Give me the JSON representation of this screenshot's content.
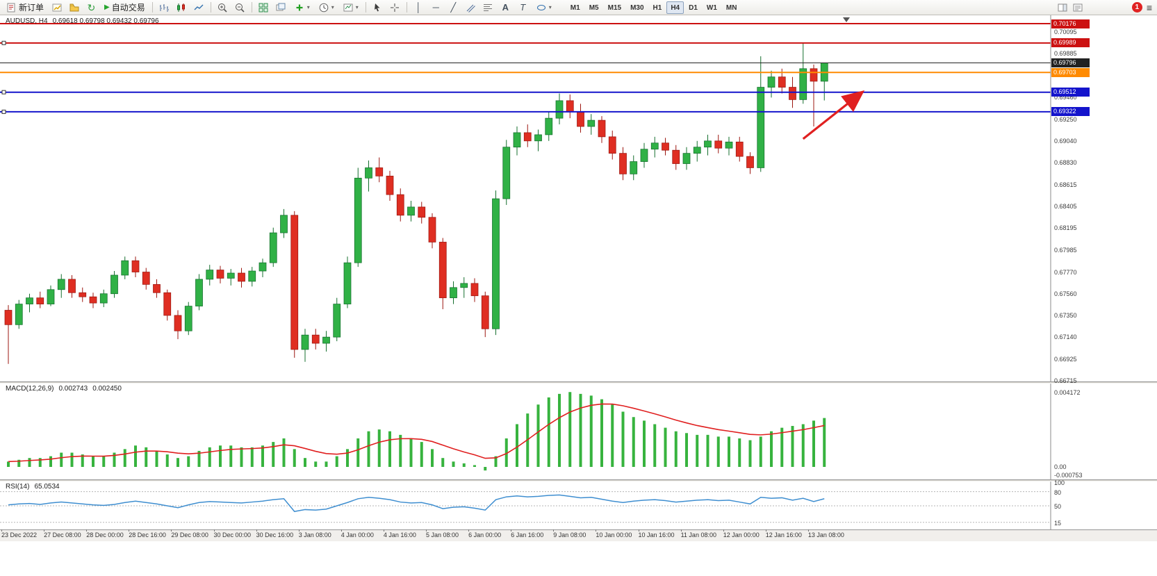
{
  "toolbar": {
    "new_order_label": "新订单",
    "autotrading_label": "自动交易",
    "timeframes": [
      "M1",
      "M5",
      "M15",
      "M30",
      "H1",
      "H4",
      "D1",
      "W1",
      "MN"
    ],
    "active_timeframe": "H4",
    "notification_count": "1",
    "glyphs": {
      "caret": "▾",
      "refresh": "↻",
      "play": "▶",
      "vline": "│",
      "hline": "─",
      "trendline": "╱",
      "text_tool": "A",
      "label_tool": "T",
      "menu": "≡"
    }
  },
  "chart": {
    "symbol_period": "AUDUSD, H4",
    "ohlc": "0.69618 0.69798 0.69432 0.69796"
  },
  "chart_data": {
    "type": "candlestick",
    "symbol": "AUDUSD",
    "period": "H4",
    "colors": {
      "up": "#30b146",
      "up_dark": "#156f2e",
      "down": "#df2e22",
      "down_dark": "#9c1710",
      "current_price_line": "#222222",
      "resistance_line": "#cc1111",
      "support_line": "#1414cc",
      "pivot_line": "#ff8a00",
      "arrow": "#e02020"
    },
    "candles": [
      [
        0.674,
        0.6745,
        0.6688,
        0.6726
      ],
      [
        0.6726,
        0.675,
        0.6722,
        0.6746
      ],
      [
        0.6746,
        0.6756,
        0.6738,
        0.6752
      ],
      [
        0.6752,
        0.6758,
        0.6742,
        0.6746
      ],
      [
        0.6746,
        0.6764,
        0.6744,
        0.676
      ],
      [
        0.676,
        0.6775,
        0.6752,
        0.677
      ],
      [
        0.677,
        0.6774,
        0.6752,
        0.6757
      ],
      [
        0.6757,
        0.6762,
        0.6748,
        0.6753
      ],
      [
        0.6753,
        0.6757,
        0.6742,
        0.6747
      ],
      [
        0.6747,
        0.676,
        0.6743,
        0.6756
      ],
      [
        0.6756,
        0.6778,
        0.6752,
        0.6774
      ],
      [
        0.6774,
        0.6792,
        0.677,
        0.6788
      ],
      [
        0.6788,
        0.6792,
        0.6772,
        0.6777
      ],
      [
        0.6777,
        0.6781,
        0.676,
        0.6765
      ],
      [
        0.6765,
        0.677,
        0.6752,
        0.6757
      ],
      [
        0.6757,
        0.676,
        0.673,
        0.6735
      ],
      [
        0.6735,
        0.674,
        0.6712,
        0.672
      ],
      [
        0.672,
        0.6748,
        0.6716,
        0.6744
      ],
      [
        0.6744,
        0.6775,
        0.674,
        0.677
      ],
      [
        0.677,
        0.6784,
        0.6764,
        0.6779
      ],
      [
        0.6779,
        0.6783,
        0.6766,
        0.6771
      ],
      [
        0.6771,
        0.678,
        0.6764,
        0.6776
      ],
      [
        0.6776,
        0.6781,
        0.6762,
        0.6768
      ],
      [
        0.6768,
        0.6782,
        0.6763,
        0.6778
      ],
      [
        0.6778,
        0.679,
        0.6772,
        0.6786
      ],
      [
        0.6786,
        0.682,
        0.6782,
        0.6815
      ],
      [
        0.6815,
        0.6838,
        0.681,
        0.6832
      ],
      [
        0.6832,
        0.6836,
        0.6694,
        0.6702
      ],
      [
        0.6702,
        0.6722,
        0.669,
        0.6716
      ],
      [
        0.6716,
        0.6722,
        0.6702,
        0.6708
      ],
      [
        0.6708,
        0.672,
        0.67,
        0.6714
      ],
      [
        0.6714,
        0.6752,
        0.671,
        0.6746
      ],
      [
        0.6746,
        0.6792,
        0.6742,
        0.6786
      ],
      [
        0.6786,
        0.6878,
        0.6782,
        0.6868
      ],
      [
        0.6868,
        0.6885,
        0.6855,
        0.6878
      ],
      [
        0.6878,
        0.6888,
        0.6864,
        0.687
      ],
      [
        0.687,
        0.6875,
        0.6846,
        0.6852
      ],
      [
        0.6852,
        0.6858,
        0.6826,
        0.6832
      ],
      [
        0.6832,
        0.6846,
        0.6826,
        0.684
      ],
      [
        0.684,
        0.6845,
        0.6824,
        0.683
      ],
      [
        0.683,
        0.6834,
        0.68,
        0.6806
      ],
      [
        0.6806,
        0.681,
        0.6741,
        0.6752
      ],
      [
        0.6752,
        0.6768,
        0.6746,
        0.6762
      ],
      [
        0.6762,
        0.6772,
        0.6752,
        0.6766
      ],
      [
        0.6766,
        0.6771,
        0.6748,
        0.6754
      ],
      [
        0.6754,
        0.6758,
        0.6714,
        0.6722
      ],
      [
        0.6722,
        0.6856,
        0.6716,
        0.6848
      ],
      [
        0.6848,
        0.6905,
        0.6842,
        0.6898
      ],
      [
        0.6898,
        0.6918,
        0.689,
        0.6912
      ],
      [
        0.6912,
        0.692,
        0.6898,
        0.6904
      ],
      [
        0.6904,
        0.6915,
        0.6894,
        0.691
      ],
      [
        0.691,
        0.6932,
        0.6904,
        0.6926
      ],
      [
        0.6926,
        0.695,
        0.692,
        0.6943
      ],
      [
        0.6943,
        0.6949,
        0.6926,
        0.6932
      ],
      [
        0.6932,
        0.694,
        0.6912,
        0.6918
      ],
      [
        0.6918,
        0.693,
        0.691,
        0.6924
      ],
      [
        0.6924,
        0.6928,
        0.6902,
        0.6908
      ],
      [
        0.6908,
        0.6914,
        0.6886,
        0.6892
      ],
      [
        0.6892,
        0.6898,
        0.6866,
        0.6872
      ],
      [
        0.6872,
        0.689,
        0.6866,
        0.6884
      ],
      [
        0.6884,
        0.6902,
        0.6878,
        0.6896
      ],
      [
        0.6896,
        0.6908,
        0.6888,
        0.6902
      ],
      [
        0.6902,
        0.6907,
        0.689,
        0.6895
      ],
      [
        0.6895,
        0.69,
        0.6876,
        0.6882
      ],
      [
        0.6882,
        0.6898,
        0.6876,
        0.6892
      ],
      [
        0.6892,
        0.6904,
        0.6884,
        0.6898
      ],
      [
        0.6898,
        0.691,
        0.689,
        0.6904
      ],
      [
        0.6904,
        0.691,
        0.6892,
        0.6897
      ],
      [
        0.6897,
        0.6908,
        0.689,
        0.6903
      ],
      [
        0.6903,
        0.6908,
        0.6884,
        0.6889
      ],
      [
        0.6889,
        0.6893,
        0.6872,
        0.6878
      ],
      [
        0.6878,
        0.6986,
        0.6874,
        0.6956
      ],
      [
        0.6956,
        0.6972,
        0.6946,
        0.6966
      ],
      [
        0.6966,
        0.6974,
        0.695,
        0.6956
      ],
      [
        0.6956,
        0.6966,
        0.6936,
        0.6944
      ],
      [
        0.6944,
        0.6999,
        0.694,
        0.6974
      ],
      [
        0.6974,
        0.6978,
        0.6918,
        0.69618
      ],
      [
        0.69618,
        0.69798,
        0.69432,
        0.69796
      ]
    ],
    "price_axis_labels": [
      "0.70095",
      "0.69885",
      "0.69675",
      "0.69460",
      "0.69250",
      "0.69040",
      "0.68830",
      "0.68615",
      "0.68405",
      "0.68195",
      "0.67985",
      "0.67770",
      "0.67560",
      "0.67350",
      "0.67140",
      "0.66925",
      "0.66715"
    ],
    "price_lines": [
      {
        "price": 0.70176,
        "label": "0.70176",
        "color": "#cc1111",
        "width": 2,
        "handles": false
      },
      {
        "price": 0.69989,
        "label": "0.69989",
        "color": "#cc1111",
        "width": 2,
        "handles": true
      },
      {
        "price": 0.69796,
        "label": "0.69796",
        "color": "#222222",
        "width": 1,
        "handles": false
      },
      {
        "price": 0.69703,
        "label": "0.69703",
        "color": "#ff8a00",
        "width": 2,
        "handles": false
      },
      {
        "price": 0.69512,
        "label": "0.69512",
        "color": "#1414cc",
        "width": 2,
        "handles": true
      },
      {
        "price": 0.69322,
        "label": "0.69322",
        "color": "#1414cc",
        "width": 2,
        "handles": true
      }
    ],
    "time_labels": [
      "23 Dec 2022",
      "27 Dec 08:00",
      "28 Dec 00:00",
      "28 Dec 16:00",
      "29 Dec 08:00",
      "30 Dec 00:00",
      "30 Dec 16:00",
      "3 Jan 08:00",
      "4 Jan 00:00",
      "4 Jan 16:00",
      "5 Jan 08:00",
      "6 Jan 00:00",
      "6 Jan 16:00",
      "9 Jan 08:00",
      "10 Jan 00:00",
      "10 Jan 16:00",
      "11 Jan 08:00",
      "12 Jan 00:00",
      "12 Jan 16:00",
      "13 Jan 08:00"
    ],
    "annotations": [
      {
        "type": "arrow",
        "color": "#e02020",
        "from": {
          "bar": 75.0,
          "price": 0.6906
        },
        "to": {
          "bar": 80.3,
          "price": 0.6949
        }
      }
    ],
    "indicators": {
      "macd": {
        "name": "MACD(12,26,9)",
        "value_main": "0.002743",
        "value_signal": "0.002450",
        "histogram_color": "#37b33e",
        "signal_color": "#e01f1f",
        "axis_labels": [
          "0.004172",
          "0.00",
          "-0.000753"
        ],
        "axis_values": [
          0.004172,
          0,
          -0.000753
        ],
        "histogram": [
          0.0003,
          0.0004,
          0.0005,
          0.0005,
          0.0006,
          0.0008,
          0.0008,
          0.0007,
          0.0006,
          0.0006,
          0.0008,
          0.001,
          0.0012,
          0.0011,
          0.0009,
          0.0007,
          0.0005,
          0.0006,
          0.0009,
          0.0011,
          0.0012,
          0.0012,
          0.0011,
          0.0011,
          0.0012,
          0.0014,
          0.0016,
          0.001,
          0.0005,
          0.0003,
          0.0003,
          0.0006,
          0.001,
          0.0016,
          0.002,
          0.0021,
          0.002,
          0.0018,
          0.0016,
          0.0014,
          0.001,
          0.0005,
          0.0003,
          0.0002,
          0.0001,
          -0.0002,
          0.0006,
          0.0016,
          0.0024,
          0.003,
          0.0035,
          0.0039,
          0.0041,
          0.0042,
          0.0041,
          0.004,
          0.0038,
          0.0035,
          0.0031,
          0.0028,
          0.0026,
          0.0024,
          0.0022,
          0.002,
          0.0019,
          0.0018,
          0.0018,
          0.0017,
          0.0017,
          0.0016,
          0.0015,
          0.0017,
          0.002,
          0.0022,
          0.0023,
          0.0024,
          0.0026,
          0.002743
        ]
      },
      "rsi": {
        "name": "RSI(14)",
        "value": "65.0534",
        "line_color": "#3e8ed0",
        "levels": [
          80,
          50,
          15
        ],
        "axis_labels": [
          "100",
          "80",
          "50",
          "15"
        ],
        "axis_values": [
          100,
          80,
          50,
          15
        ],
        "values": [
          52,
          54,
          55,
          53,
          56,
          58,
          56,
          54,
          52,
          51,
          53,
          57,
          60,
          57,
          54,
          50,
          46,
          52,
          57,
          59,
          58,
          57,
          56,
          58,
          60,
          63,
          65,
          38,
          42,
          41,
          43,
          50,
          57,
          65,
          68,
          66,
          63,
          58,
          56,
          57,
          52,
          44,
          47,
          48,
          45,
          41,
          63,
          69,
          71,
          69,
          70,
          72,
          73,
          70,
          67,
          68,
          64,
          60,
          57,
          60,
          62,
          63,
          61,
          58,
          60,
          62,
          63,
          61,
          62,
          58,
          54,
          68,
          66,
          67,
          62,
          66,
          59,
          65.05
        ]
      }
    }
  }
}
